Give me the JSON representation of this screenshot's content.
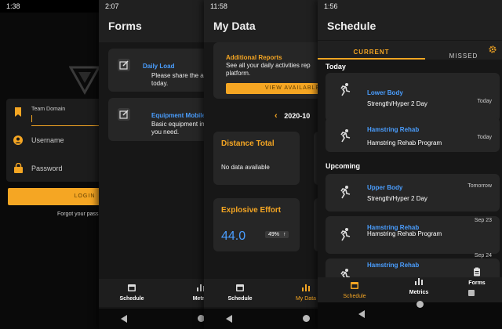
{
  "login": {
    "status_time": "1:38",
    "team_domain_label": "Team Domain",
    "username_placeholder": "Username",
    "password_placeholder": "Password",
    "login_button": "LOGIN",
    "forgot": "Forgot your pass"
  },
  "forms": {
    "status_time": "2:07",
    "title": "Forms",
    "items": [
      {
        "title": "Daily Load",
        "desc1": "Please share the activ",
        "desc2": "today."
      },
      {
        "title": "Equipment Mobile",
        "desc1": "Basic equipment info",
        "desc2": "you need."
      }
    ],
    "nav": {
      "schedule": "Schedule",
      "metrics": "Metric"
    }
  },
  "mydata": {
    "status_time": "11:58",
    "title": "My Data",
    "reports_title": "Additional Reports",
    "reports_desc1": "See all your daily activities rep",
    "reports_desc2": "platform.",
    "view_button": "VIEW AVAILABLE",
    "date": "2020-10",
    "distance_title": "Distance Total",
    "distance_value": "No data available",
    "explosive_title": "Explosive Effort",
    "explosive_value": "44.0",
    "explosive_change": "49%",
    "nav": {
      "schedule": "Schedule",
      "mydata": "My Data"
    }
  },
  "schedule": {
    "status_time": "1:56",
    "title": "Schedule",
    "tabs": {
      "current": "CURRENT",
      "missed": "MISSED"
    },
    "section_today": "Today",
    "section_upcoming": "Upcoming",
    "items": [
      {
        "title": "Lower Body",
        "subtitle": "Strength/Hyper 2 Day",
        "when": "Today"
      },
      {
        "title": "Hamstring Rehab",
        "subtitle": "Hamstring Rehab Program",
        "when": "Today"
      },
      {
        "title": "Upper Body",
        "subtitle": "Strength/Hyper 2 Day",
        "when": "Tomorrow"
      },
      {
        "title": "Hamstring Rehab",
        "subtitle": "Hamstring Rehab Program",
        "when": "Sep 23"
      },
      {
        "title": "Hamstring Rehab",
        "subtitle": "",
        "when": "Sep 24"
      }
    ],
    "nav": {
      "schedule": "Schedule",
      "metrics": "Metrics",
      "forms": "Forms"
    }
  }
}
